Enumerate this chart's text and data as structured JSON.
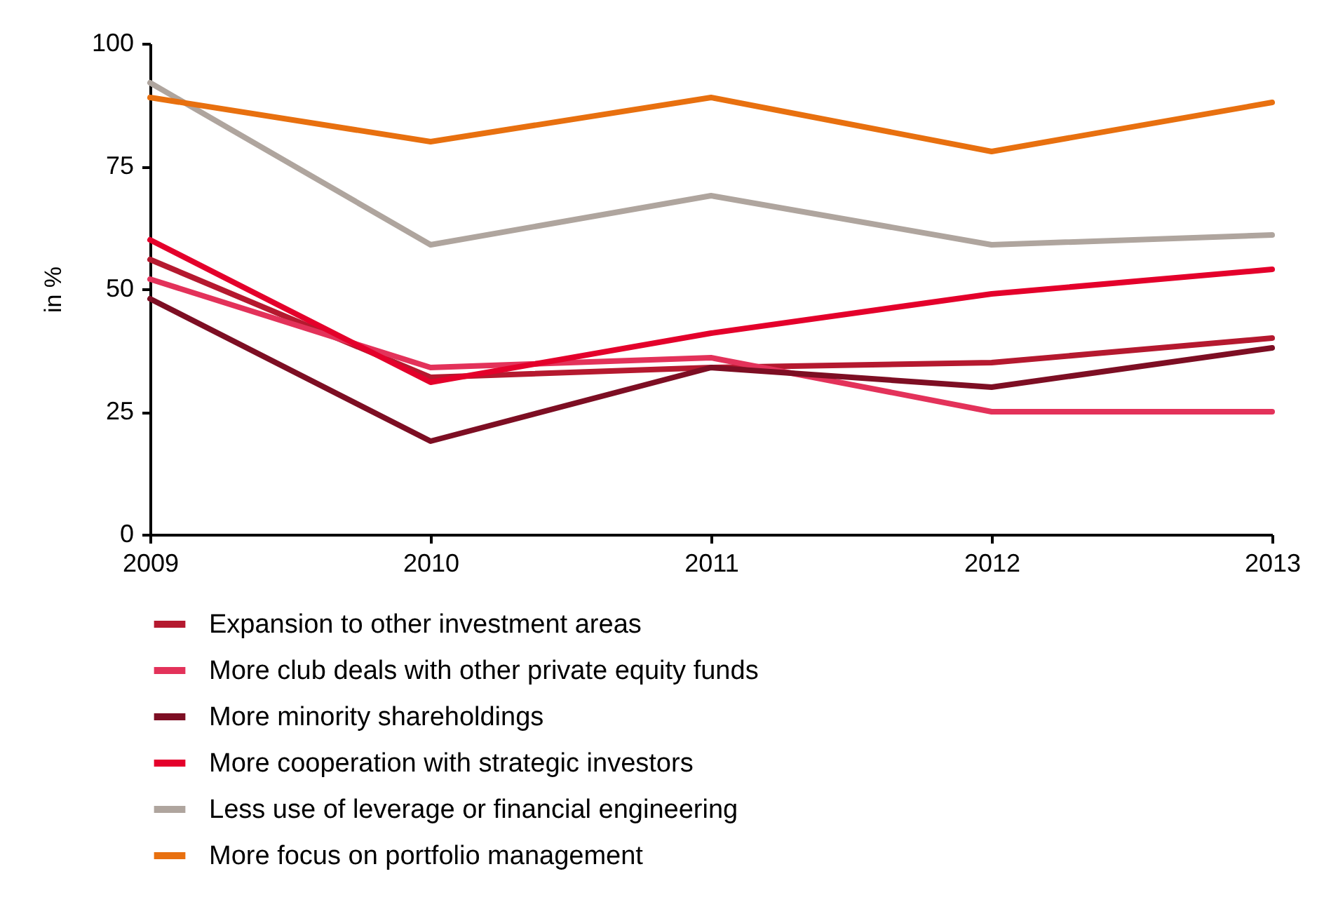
{
  "chart_data": {
    "type": "line",
    "ylabel": "in %",
    "x": [
      2009,
      2010,
      2011,
      2012,
      2013
    ],
    "xlim": [
      2009,
      2013
    ],
    "xticks": [
      2009,
      2010,
      2011,
      2012,
      2013
    ],
    "ylim": [
      0,
      100
    ],
    "yticks": [
      0,
      25,
      50,
      75,
      100
    ],
    "grid": false,
    "legend": "bottom",
    "line_style": "solid",
    "series": [
      {
        "name": "Expansion to other investment areas",
        "color": "#b5192f",
        "values": [
          56,
          32,
          34,
          35,
          40
        ]
      },
      {
        "name": "More club deals with other private equity funds",
        "color": "#e3325a",
        "values": [
          52,
          34,
          36,
          25,
          25
        ]
      },
      {
        "name": "More minority shareholdings",
        "color": "#7d0e23",
        "values": [
          48,
          19,
          34,
          30,
          38
        ]
      },
      {
        "name": "More cooperation with strategic investors",
        "color": "#e4002b",
        "values": [
          60,
          31,
          41,
          49,
          54
        ]
      },
      {
        "name": "Less use of leverage or financial engineering",
        "color": "#afa59e",
        "values": [
          92,
          59,
          69,
          59,
          61
        ]
      },
      {
        "name": "More focus on portfolio management",
        "color": "#e8700f",
        "values": [
          89,
          80,
          89,
          78,
          88
        ]
      }
    ]
  }
}
